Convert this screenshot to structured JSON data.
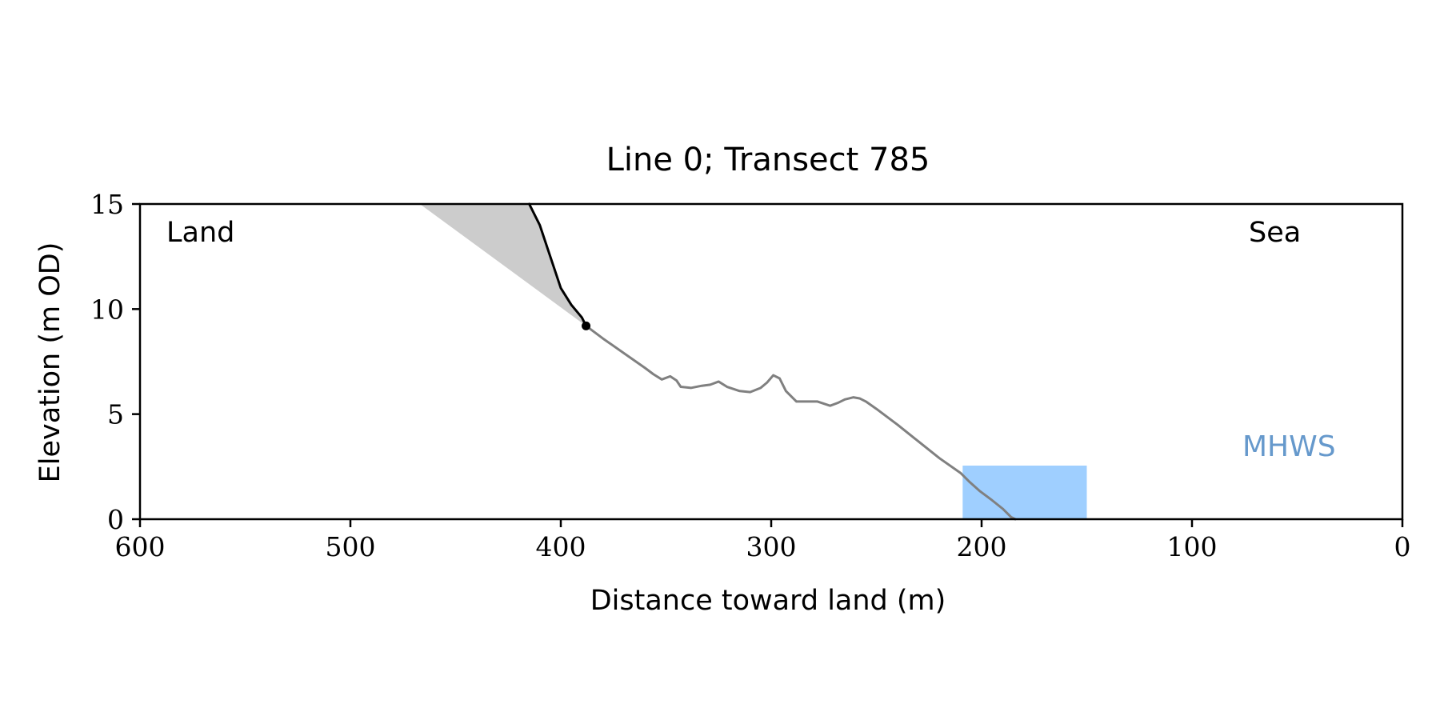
{
  "chart_data": {
    "type": "line",
    "title": "Line 0; Transect 785",
    "xlabel": "Distance toward land (m)",
    "ylabel": "Elevation (m OD)",
    "xlim": [
      600,
      0
    ],
    "ylim": [
      0,
      15
    ],
    "xticks": [
      600,
      500,
      400,
      300,
      200,
      100,
      0
    ],
    "yticks": [
      0,
      5,
      10,
      15
    ],
    "grid": false,
    "annotations": {
      "land": "Land",
      "sea": "Sea",
      "mhws": "MHWS"
    },
    "colors": {
      "profile": "#808080",
      "cliff": "#000000",
      "shaded_region": "#cccccc",
      "mhws": "#9fcfff",
      "mhws_label": "#6699cc"
    },
    "series": [
      {
        "role": "profile",
        "x": [
          388,
          380,
          370,
          360,
          356,
          352,
          348,
          345,
          343,
          338,
          333,
          329,
          325,
          321,
          315,
          310,
          305,
          302,
          299,
          296,
          293,
          288,
          278,
          272,
          268,
          265,
          261,
          258,
          255,
          250,
          240,
          230,
          220,
          210,
          206,
          201,
          195,
          190,
          186,
          184
        ],
        "y": [
          9.2,
          8.6,
          7.9,
          7.2,
          6.9,
          6.65,
          6.8,
          6.6,
          6.3,
          6.25,
          6.35,
          6.4,
          6.55,
          6.3,
          6.1,
          6.05,
          6.25,
          6.5,
          6.85,
          6.7,
          6.1,
          5.6,
          5.6,
          5.4,
          5.55,
          5.7,
          5.8,
          5.75,
          5.6,
          5.25,
          4.5,
          3.7,
          2.9,
          2.2,
          1.8,
          1.35,
          0.9,
          0.5,
          0.1,
          0
        ]
      },
      {
        "role": "cliff",
        "x": [
          415,
          410,
          405,
          400,
          395,
          390,
          388
        ],
        "y": [
          15,
          14.0,
          12.5,
          11.0,
          10.2,
          9.6,
          9.2
        ]
      }
    ],
    "cliff_toe": {
      "x": 388,
      "y": 9.2
    },
    "shaded_region": {
      "x": [
        467,
        415,
        410,
        405,
        400,
        395,
        390,
        388
      ],
      "y": [
        15,
        15,
        14.0,
        12.5,
        11.0,
        10.2,
        9.6,
        9.2
      ]
    },
    "mhws_band": {
      "x_from": 209,
      "x_to": 150,
      "y_from": 0,
      "y_to": 2.55
    }
  }
}
